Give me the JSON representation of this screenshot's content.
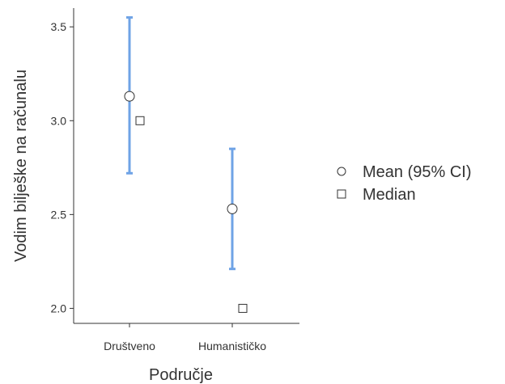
{
  "chart_data": {
    "type": "scatter",
    "xlabel": "Područje",
    "ylabel": "Vodim bilješke na računalu",
    "categories": [
      "Društveno",
      "Humanističko"
    ],
    "ylim": [
      1.92,
      3.6
    ],
    "yticks": [
      2.0,
      2.5,
      3.0,
      3.5
    ],
    "ytick_labels": [
      "2.0",
      "2.5",
      "3.0",
      "3.5"
    ],
    "grid": false,
    "legend_position": "right",
    "series": [
      {
        "name": "Mean (95% CI)",
        "marker": "circle",
        "values": [
          3.13,
          2.53
        ],
        "ci_lower": [
          2.72,
          2.21
        ],
        "ci_upper": [
          3.55,
          2.85
        ]
      },
      {
        "name": "Median",
        "marker": "square",
        "values": [
          3.0,
          2.0
        ]
      }
    ],
    "colors": {
      "error_bar": "#6fa3e6",
      "axis": "#333333",
      "marker_stroke": "#333333",
      "marker_fill": "#ffffff"
    }
  }
}
